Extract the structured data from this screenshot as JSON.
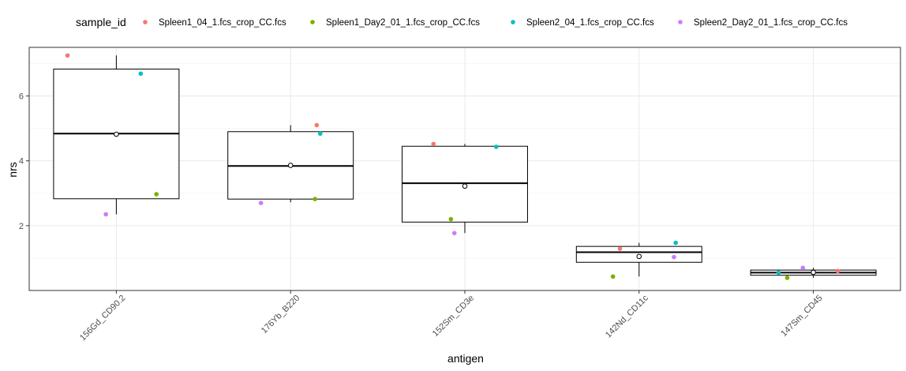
{
  "chart_data": {
    "type": "boxplot",
    "xlabel": "antigen",
    "ylabel": "nrs",
    "ylim": [
      0.0,
      7.5
    ],
    "y_ticks": [
      2,
      4,
      6
    ],
    "grid": true,
    "legend": {
      "title": "sample_id",
      "position": "top",
      "entries": [
        {
          "name": "Spleen1_04_1.fcs_crop_CC.fcs",
          "color": "#F8766D"
        },
        {
          "name": "Spleen1_Day2_01_1.fcs_crop_CC.fcs",
          "color": "#7CAE00"
        },
        {
          "name": "Spleen2_04_1.fcs_crop_CC.fcs",
          "color": "#00BFC4"
        },
        {
          "name": "Spleen2_Day2_01_1.fcs_crop_CC.fcs",
          "color": "#C77CFF"
        }
      ]
    },
    "categories": [
      "156Gd_CD90.2",
      "176Yb_B220",
      "152Sm_CD3e",
      "142Nd_CD11c",
      "147Sm_CD45"
    ],
    "boxes": [
      {
        "q1": 2.83,
        "median": 4.84,
        "q3": 6.83,
        "whisker_low": 2.35,
        "whisker_high": 7.25,
        "mean": 4.82
      },
      {
        "q1": 2.82,
        "median": 3.84,
        "q3": 4.9,
        "whisker_low": 2.72,
        "whisker_high": 5.1,
        "mean": 3.86
      },
      {
        "q1": 2.11,
        "median": 3.31,
        "q3": 4.45,
        "whisker_low": 1.77,
        "whisker_high": 4.52,
        "mean": 3.22
      },
      {
        "q1": 0.87,
        "median": 1.18,
        "q3": 1.36,
        "whisker_low": 0.43,
        "whisker_high": 1.47,
        "mean": 1.05
      },
      {
        "q1": 0.47,
        "median": 0.55,
        "q3": 0.63,
        "whisker_low": 0.39,
        "whisker_high": 0.7,
        "mean": 0.56
      }
    ],
    "series": [
      {
        "name": "Spleen1_04_1.fcs_crop_CC.fcs",
        "values": [
          7.25,
          5.1,
          4.52,
          1.29,
          0.6
        ]
      },
      {
        "name": "Spleen1_Day2_01_1.fcs_crop_CC.fcs",
        "values": [
          2.97,
          2.82,
          2.2,
          0.43,
          0.39
        ]
      },
      {
        "name": "Spleen2_04_1.fcs_crop_CC.fcs",
        "values": [
          6.69,
          4.84,
          4.43,
          1.47,
          0.55
        ]
      },
      {
        "name": "Spleen2_Day2_01_1.fcs_crop_CC.fcs",
        "values": [
          2.35,
          2.7,
          1.77,
          1.03,
          0.7
        ]
      }
    ],
    "jitter": [
      [
        -0.28,
        0.23,
        0.14,
        -0.06,
        -0.36,
        0.41
      ],
      [
        0.15,
        0.14,
        0.17,
        -0.17,
        -0.34
      ],
      [
        -0.18,
        -0.08,
        0.18,
        -0.06,
        0.13
      ],
      [
        -0.11,
        -0.15,
        0.21,
        0.2,
        0.08
      ],
      [
        0.14,
        -0.15,
        -0.2,
        -0.06,
        0.13
      ]
    ]
  }
}
